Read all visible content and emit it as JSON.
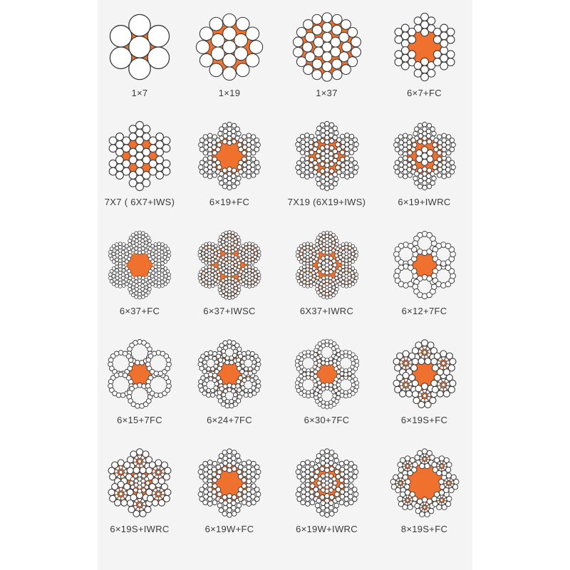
{
  "colors": {
    "orange": "#f0712e",
    "wire_fill": "#ffffff",
    "wire_stroke": "#383838",
    "page_bg": "#f4f4f5",
    "margin_bg": "#ffffff",
    "label_color": "#3a3a3a"
  },
  "diagrams": [
    {
      "label": "1×7",
      "core_r": 26.5,
      "center": {
        "rings": [
          [
            1,
            0,
            15.5
          ],
          [
            6,
            31,
            15.5
          ]
        ]
      }
    },
    {
      "label": "1×19",
      "core_r": 36,
      "center": {
        "rings": [
          [
            1,
            0,
            9.5
          ],
          [
            6,
            19,
            9.5
          ],
          [
            12,
            38,
            9.5
          ]
        ]
      }
    },
    {
      "label": "1×37",
      "core_r": 40,
      "center": {
        "rings": [
          [
            1,
            0,
            7
          ],
          [
            6,
            14,
            7
          ],
          [
            12,
            28,
            7
          ],
          [
            18,
            42,
            7
          ]
        ]
      }
    },
    {
      "label": "6×7+FC",
      "core_r": 30,
      "strands": {
        "count": 6,
        "dist": 32,
        "rings": [
          [
            1,
            0,
            5.5
          ],
          [
            6,
            11,
            5.5
          ]
        ]
      }
    },
    {
      "label": "7X7 ( 6X7+IWS)",
      "core_r": 30,
      "strands": {
        "count": 6,
        "dist": 33,
        "rings": [
          [
            1,
            0,
            5.5
          ],
          [
            6,
            11,
            5.5
          ]
        ]
      },
      "center": {
        "rings": [
          [
            1,
            0,
            5.5
          ],
          [
            6,
            11,
            5.5
          ]
        ]
      }
    },
    {
      "label": "6×19+FC",
      "core_r": 30,
      "strands": {
        "count": 6,
        "dist": 32,
        "rings": [
          [
            1,
            0,
            3.3
          ],
          [
            6,
            6.6,
            3.3
          ],
          [
            12,
            13.2,
            3.3
          ]
        ]
      }
    },
    {
      "label": "7X19 (6X19+IWS)",
      "core_r": 30,
      "strands": {
        "count": 6,
        "dist": 33,
        "rings": [
          [
            1,
            0,
            3.3
          ],
          [
            6,
            6.6,
            3.3
          ],
          [
            12,
            13.2,
            3.3
          ]
        ]
      },
      "center": {
        "rings": [
          [
            1,
            0,
            3.3
          ],
          [
            6,
            6.6,
            3.3
          ],
          [
            12,
            13.2,
            3.3
          ]
        ]
      }
    },
    {
      "label": "6×19+IWRC",
      "core_r": 30,
      "strands": {
        "count": 6,
        "dist": 32,
        "rings": [
          [
            1,
            0,
            3.3
          ],
          [
            6,
            6.6,
            3.3
          ],
          [
            12,
            13.2,
            3.3
          ]
        ]
      },
      "center": {
        "rings": [
          [
            1,
            0,
            4.5
          ],
          [
            6,
            9,
            4.5
          ]
        ]
      }
    },
    {
      "label": "6×37+FC",
      "core_r": 19,
      "strands": {
        "count": 6,
        "dist": 32,
        "rings": [
          [
            1,
            0,
            2.4
          ],
          [
            6,
            4.8,
            2.4
          ],
          [
            12,
            9.6,
            2.4
          ],
          [
            18,
            14.4,
            2.4
          ]
        ]
      }
    },
    {
      "label": "6×37+IWSC",
      "core_r": 30,
      "strands": {
        "count": 6,
        "dist": 33,
        "tint": "orange",
        "tint_r": 15,
        "rings": [
          [
            1,
            0,
            2.35
          ],
          [
            6,
            4.7,
            2.35
          ],
          [
            12,
            9.4,
            2.35
          ],
          [
            18,
            14.1,
            2.35
          ]
        ]
      },
      "center": {
        "tint": "orange",
        "tint_r": 15,
        "rings": [
          [
            1,
            0,
            2.35
          ],
          [
            6,
            4.7,
            2.35
          ],
          [
            12,
            9.4,
            2.35
          ],
          [
            18,
            14.1,
            2.35
          ]
        ]
      }
    },
    {
      "label": "6X37+IWRC",
      "core_r": 30,
      "strands": {
        "count": 6,
        "dist": 32,
        "tint": "orange",
        "tint_r": 15,
        "rings": [
          [
            1,
            0,
            2.4
          ],
          [
            6,
            4.8,
            2.4
          ],
          [
            12,
            9.6,
            2.4
          ],
          [
            18,
            14.4,
            2.4
          ]
        ]
      },
      "center": {
        "rings": [
          [
            1,
            0,
            2.8
          ],
          [
            6,
            5.6,
            2.8
          ],
          [
            12,
            11.2,
            2.8
          ]
        ]
      }
    },
    {
      "label": "6×12+7FC",
      "core_r": 30.5,
      "strands": {
        "count": 6,
        "dist": 31,
        "tint": "page",
        "tint_r": 13.5,
        "rings": [
          [
            12,
            13.5,
            3.9
          ]
        ]
      }
    },
    {
      "label": "6×15+7FC",
      "core_r": 30.5,
      "strands": {
        "count": 6,
        "dist": 31,
        "tint": "page",
        "tint_r": 15,
        "rings": [
          [
            15,
            15,
            3.4
          ]
        ]
      }
    },
    {
      "label": "6×24+7FC",
      "core_r": 30.5,
      "strands": {
        "count": 6,
        "dist": 31,
        "tint": "page",
        "tint_r": 8.6,
        "rings": [
          [
            9,
            8.6,
            3.0
          ],
          [
            15,
            14.8,
            3.2
          ]
        ]
      }
    },
    {
      "label": "6×30+7FC",
      "core_r": 30.5,
      "strands": {
        "count": 6,
        "dist": 31,
        "tint": "page",
        "tint_r": 10.8,
        "rings": [
          [
            12,
            10.8,
            2.8
          ],
          [
            18,
            16,
            2.9
          ]
        ]
      }
    },
    {
      "label": "6×19S+FC",
      "core_r": 30,
      "strands": {
        "count": 6,
        "dist": 31,
        "tint": "orange",
        "tint_r": 11.5,
        "rings": [
          [
            1,
            0,
            2.6
          ],
          [
            9,
            7,
            2.55
          ],
          [
            9,
            13.5,
            4.6
          ]
        ]
      }
    },
    {
      "label": "6×19S+IWRC",
      "core_r": 30,
      "strands": {
        "count": 6,
        "dist": 31,
        "tint": "orange",
        "tint_r": 11.5,
        "rings": [
          [
            1,
            0,
            2.6
          ],
          [
            9,
            7,
            2.55
          ],
          [
            9,
            13.5,
            4.6
          ]
        ]
      },
      "center": {
        "rings": [
          [
            1,
            0,
            2.9
          ],
          [
            6,
            5.8,
            2.9
          ],
          [
            12,
            11.6,
            2.9
          ]
        ]
      }
    },
    {
      "label": "6×19W+FC",
      "core_r": 29.5,
      "strands": {
        "count": 6,
        "dist": 32,
        "rings": [
          [
            1,
            0,
            3.4
          ],
          [
            6,
            6.8,
            3.4
          ],
          [
            12,
            13.6,
            3.4
          ]
        ]
      }
    },
    {
      "label": "6×19W+IWRC",
      "core_r": 29.5,
      "strands": {
        "count": 6,
        "dist": 32,
        "rings": [
          [
            1,
            0,
            3.4
          ],
          [
            6,
            6.8,
            3.4
          ],
          [
            12,
            13.6,
            3.4
          ]
        ]
      },
      "center": {
        "rings": [
          [
            1,
            0,
            2.9
          ],
          [
            6,
            5.8,
            2.9
          ],
          [
            12,
            11.6,
            2.9
          ]
        ]
      }
    },
    {
      "label": "8×19S+FC",
      "core_r": 33.5,
      "strands": {
        "count": 8,
        "dist": 34.5,
        "tint": "orange",
        "tint_r": 9.2,
        "rings": [
          [
            1,
            0,
            2.1
          ],
          [
            9,
            5.6,
            2.05
          ],
          [
            9,
            10.8,
            3.7
          ]
        ]
      }
    }
  ]
}
